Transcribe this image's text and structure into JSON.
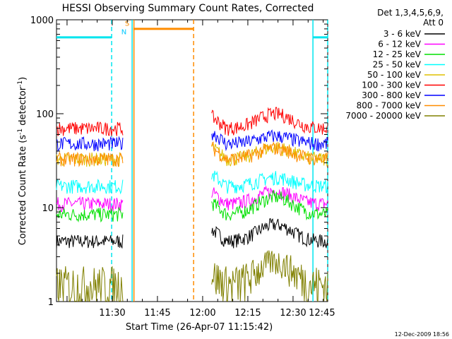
{
  "chart_data": {
    "type": "line",
    "title": "HESSI Observing Summary Count Rates, Corrected",
    "xlabel": "Start Time (26-Apr-07 11:15:42)",
    "ylabel": "Corrected Count Rate (s",
    "ylabel_sup1": "-1",
    "ylabel_mid": " detector",
    "ylabel_sup2": "-1",
    "ylabel_end": ")",
    "xlim_minutes": [
      11.5,
      101.5
    ],
    "ylim": [
      1,
      1000
    ],
    "yscale": "log",
    "x_ticks": [
      {
        "minute": 30,
        "label": "11:30"
      },
      {
        "minute": 45,
        "label": "11:45"
      },
      {
        "minute": 60,
        "label": "12:00"
      },
      {
        "minute": 75,
        "label": "12:15"
      },
      {
        "minute": 90,
        "label": "12:30"
      },
      {
        "minute": 105,
        "label": "12:45"
      }
    ],
    "y_ticks": [
      {
        "value": 1,
        "label": "1"
      },
      {
        "value": 10,
        "label": "10"
      },
      {
        "value": 100,
        "label": "100"
      },
      {
        "value": 1000,
        "label": "1000"
      }
    ],
    "legend": {
      "header1": "Det 1,3,4,5,6,9,",
      "header2": "Att 0",
      "placement": "right"
    },
    "timestamp": "12-Dec-2009 18:56",
    "flags": [
      {
        "label": "N",
        "color": "#00c8ff"
      },
      {
        "label": "S",
        "color": "#ff8c00"
      }
    ],
    "flag_segments": [
      {
        "name": "night",
        "color": "#00e5ee",
        "style": "dash",
        "start": 11.5,
        "end": 29.8,
        "value": 650
      },
      {
        "name": "night",
        "color": "#00e5ee",
        "style": "dash",
        "start": 96.6,
        "end": 101.5,
        "value": 650
      },
      {
        "name": "saa",
        "color": "#ff8c00",
        "style": "dash",
        "start": 37.0,
        "end": 57.0,
        "value": 800
      }
    ],
    "vlines": [
      {
        "minute": 29.8,
        "color": "#00e5ee",
        "style": "dash"
      },
      {
        "minute": 36.6,
        "color": "#00e5ee",
        "style": "solid"
      },
      {
        "minute": 37.2,
        "color": "#ff8c00",
        "style": "solid"
      },
      {
        "minute": 57.0,
        "color": "#ff8c00",
        "style": "dash"
      },
      {
        "minute": 96.6,
        "color": "#00e5ee",
        "style": "solid"
      },
      {
        "minute": 101.5,
        "color": "#00e5ee",
        "style": "dash"
      }
    ],
    "gaps": [
      [
        33.5,
        62.8
      ]
    ],
    "series": [
      {
        "name": "3 - 6 keV",
        "color": "#000000",
        "base": 4.4,
        "bump": 2.2
      },
      {
        "name": "6 - 12 keV",
        "color": "#ff00ff",
        "base": 11.0,
        "bump": 4.0
      },
      {
        "name": "12 - 25 keV",
        "color": "#00e000",
        "base": 8.5,
        "bump": 4.5
      },
      {
        "name": "25 - 50 keV",
        "color": "#00ffff",
        "base": 17.0,
        "bump": 4.0
      },
      {
        "name": "50 - 100 keV",
        "color": "#e0c000",
        "base": 33.0,
        "bump": 11.0
      },
      {
        "name": "100 - 300 keV",
        "color": "#ff0000",
        "base": 70.0,
        "bump": 30.0
      },
      {
        "name": "300 - 800 keV",
        "color": "#0000ff",
        "base": 48.0,
        "bump": 10.0
      },
      {
        "name": "800 - 7000 keV",
        "color": "#ff8c00",
        "base": 33.0,
        "bump": 10.0
      },
      {
        "name": "7000 - 20000 keV",
        "color": "#808000",
        "base": 1.5,
        "bump": 1.2
      }
    ]
  }
}
